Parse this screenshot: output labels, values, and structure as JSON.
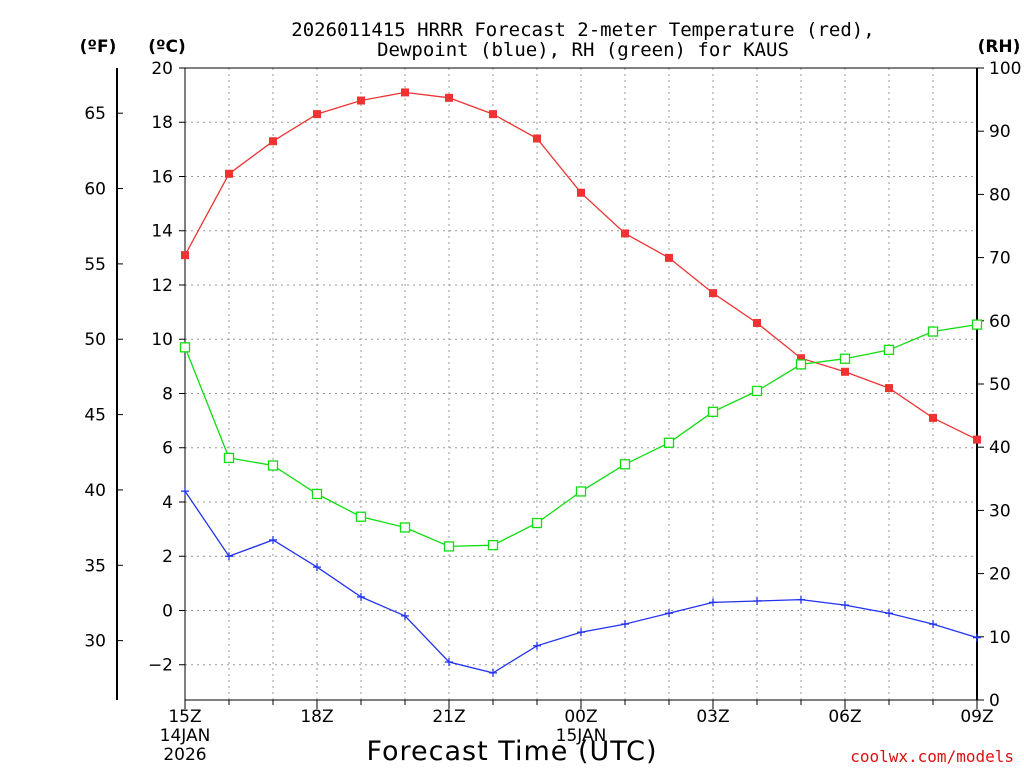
{
  "chart_data": {
    "type": "line",
    "title": "2026011415 HRRR Forecast 2-meter Temperature (red),",
    "subtitle": "Dewpoint (blue), RH (green) for KAUS",
    "xlabel": "Forecast Time (UTC)",
    "credit": "coolwx.com/models",
    "unit_f": "(ºF)",
    "unit_c": "(ºC)",
    "unit_rh": "(RH)",
    "x_ticks": [
      "15Z",
      "18Z",
      "21Z",
      "00Z",
      "03Z",
      "06Z",
      "09Z"
    ],
    "date_labels": [
      {
        "hour": 0,
        "line1": "14JAN",
        "line2": "2026"
      },
      {
        "hour": 9,
        "line1": "15JAN",
        "line2": ""
      }
    ],
    "xlim": [
      0,
      18
    ],
    "ylim_c": [
      -3.3,
      20
    ],
    "ylim_rh": [
      0,
      100
    ],
    "c_ticks": [
      "20",
      "18",
      "16",
      "14",
      "12",
      "10",
      "8",
      "6",
      "4",
      "2",
      "0",
      "−2"
    ],
    "f_ticks": [
      "65",
      "60",
      "55",
      "50",
      "45",
      "40",
      "35",
      "30"
    ],
    "rh_ticks": [
      "100",
      "90",
      "80",
      "70",
      "60",
      "50",
      "40",
      "30",
      "20",
      "10",
      "0"
    ],
    "colors": {
      "temperature": "#ee3333",
      "dewpoint": "#2233ee",
      "rh": "#11dd11"
    },
    "series": [
      {
        "name": "Temperature",
        "key": "temperature",
        "axis": "c",
        "marker": "filled-square",
        "values": [
          13.1,
          16.1,
          17.3,
          18.3,
          18.8,
          19.1,
          18.9,
          18.3,
          17.4,
          15.4,
          13.9,
          13.0,
          11.7,
          10.6,
          9.3,
          8.8,
          8.2,
          7.1,
          6.3
        ]
      },
      {
        "name": "Dewpoint",
        "key": "dewpoint",
        "axis": "c",
        "marker": "cross",
        "values": [
          4.4,
          2.0,
          2.6,
          1.6,
          0.5,
          -0.2,
          -1.9,
          -2.3,
          -1.3,
          -0.8,
          -0.5,
          -0.1,
          0.3,
          0.35,
          0.4,
          0.2,
          -0.1,
          -0.5,
          -1.0
        ]
      },
      {
        "name": "RH",
        "key": "rh",
        "axis": "rh",
        "marker": "open-square",
        "values": [
          55.8,
          38.3,
          37.1,
          32.6,
          29.0,
          27.3,
          24.3,
          24.5,
          28.0,
          33.0,
          37.3,
          40.7,
          45.6,
          48.9,
          53.1,
          54.0,
          55.4,
          58.3,
          59.4
        ]
      }
    ]
  }
}
